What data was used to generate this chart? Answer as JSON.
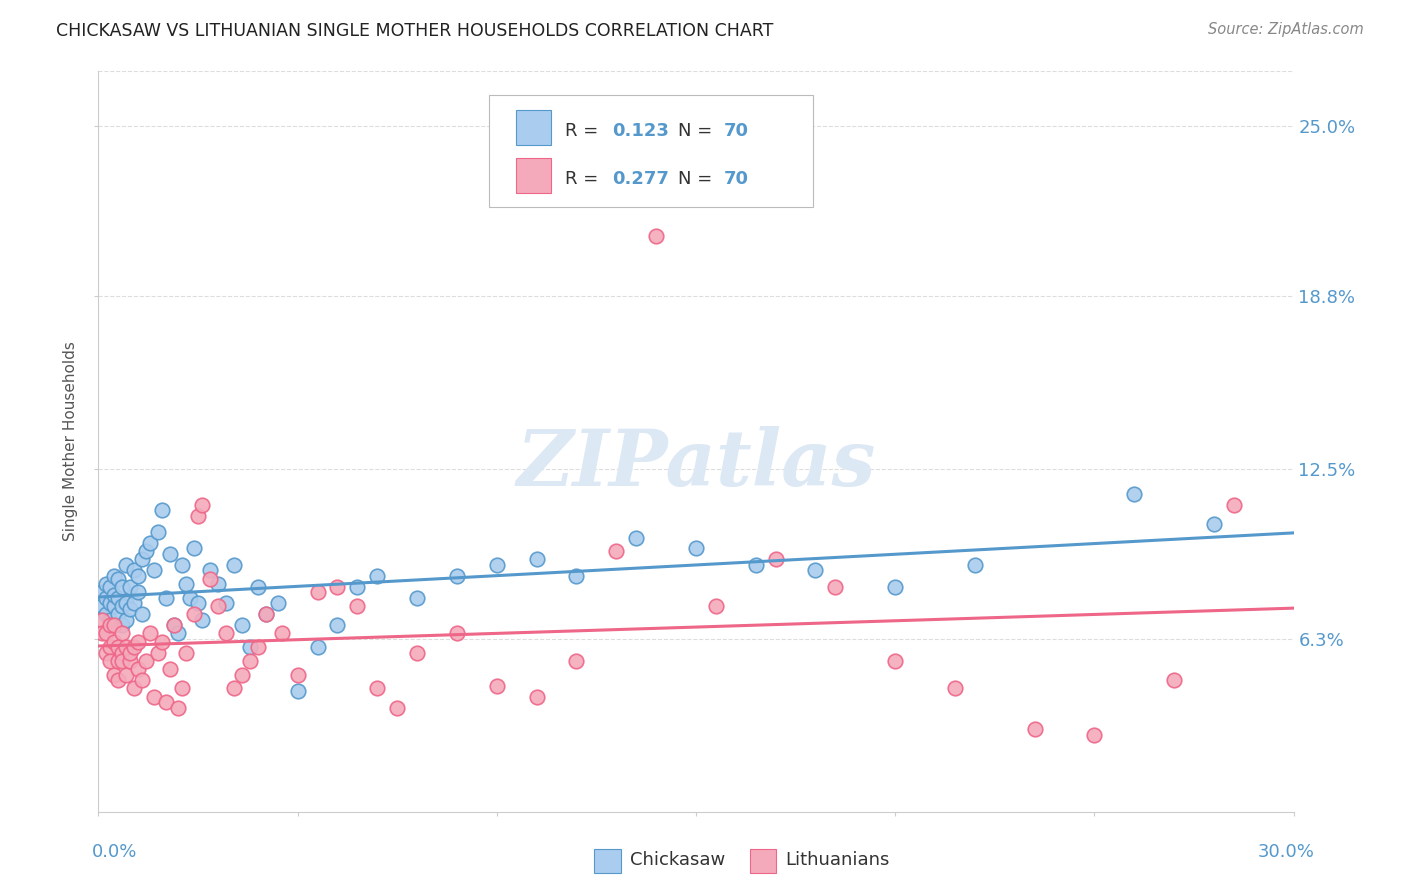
{
  "title": "CHICKASAW VS LITHUANIAN SINGLE MOTHER HOUSEHOLDS CORRELATION CHART",
  "source": "Source: ZipAtlas.com",
  "ylabel": "Single Mother Households",
  "ytick_labels": [
    "6.3%",
    "12.5%",
    "18.8%",
    "25.0%"
  ],
  "ytick_values": [
    0.063,
    0.125,
    0.188,
    0.25
  ],
  "xmin": 0.0,
  "xmax": 0.3,
  "ymin": 0.0,
  "ymax": 0.27,
  "chickasaw_color": "#aaccee",
  "lithuanian_color": "#f4aabb",
  "chickasaw_line_color": "#5599cc",
  "lithuanian_line_color": "#ee6688",
  "chickasaw_x": [
    0.001,
    0.001,
    0.002,
    0.002,
    0.002,
    0.003,
    0.003,
    0.003,
    0.004,
    0.004,
    0.004,
    0.005,
    0.005,
    0.005,
    0.006,
    0.006,
    0.006,
    0.007,
    0.007,
    0.007,
    0.008,
    0.008,
    0.009,
    0.009,
    0.01,
    0.01,
    0.011,
    0.011,
    0.012,
    0.013,
    0.014,
    0.015,
    0.016,
    0.017,
    0.018,
    0.019,
    0.02,
    0.021,
    0.022,
    0.023,
    0.024,
    0.025,
    0.026,
    0.028,
    0.03,
    0.032,
    0.034,
    0.036,
    0.038,
    0.04,
    0.042,
    0.045,
    0.05,
    0.055,
    0.06,
    0.065,
    0.07,
    0.08,
    0.09,
    0.1,
    0.11,
    0.12,
    0.135,
    0.15,
    0.165,
    0.18,
    0.2,
    0.22,
    0.26,
    0.28
  ],
  "chickasaw_y": [
    0.075,
    0.08,
    0.072,
    0.078,
    0.083,
    0.07,
    0.076,
    0.082,
    0.075,
    0.079,
    0.086,
    0.072,
    0.078,
    0.085,
    0.068,
    0.075,
    0.082,
    0.07,
    0.076,
    0.09,
    0.074,
    0.082,
    0.076,
    0.088,
    0.08,
    0.086,
    0.092,
    0.072,
    0.095,
    0.098,
    0.088,
    0.102,
    0.11,
    0.078,
    0.094,
    0.068,
    0.065,
    0.09,
    0.083,
    0.078,
    0.096,
    0.076,
    0.07,
    0.088,
    0.083,
    0.076,
    0.09,
    0.068,
    0.06,
    0.082,
    0.072,
    0.076,
    0.044,
    0.06,
    0.068,
    0.082,
    0.086,
    0.078,
    0.086,
    0.09,
    0.092,
    0.086,
    0.1,
    0.096,
    0.09,
    0.088,
    0.082,
    0.09,
    0.116,
    0.105
  ],
  "lithuanian_x": [
    0.001,
    0.001,
    0.002,
    0.002,
    0.003,
    0.003,
    0.003,
    0.004,
    0.004,
    0.004,
    0.005,
    0.005,
    0.005,
    0.006,
    0.006,
    0.006,
    0.007,
    0.007,
    0.008,
    0.008,
    0.009,
    0.009,
    0.01,
    0.01,
    0.011,
    0.012,
    0.013,
    0.014,
    0.015,
    0.016,
    0.017,
    0.018,
    0.019,
    0.02,
    0.021,
    0.022,
    0.024,
    0.025,
    0.026,
    0.028,
    0.03,
    0.032,
    0.034,
    0.036,
    0.038,
    0.04,
    0.042,
    0.046,
    0.05,
    0.055,
    0.06,
    0.065,
    0.07,
    0.075,
    0.08,
    0.09,
    0.1,
    0.11,
    0.12,
    0.13,
    0.14,
    0.155,
    0.17,
    0.185,
    0.2,
    0.215,
    0.235,
    0.25,
    0.27,
    0.285
  ],
  "lithuanian_y": [
    0.07,
    0.065,
    0.058,
    0.065,
    0.06,
    0.055,
    0.068,
    0.05,
    0.062,
    0.068,
    0.055,
    0.06,
    0.048,
    0.065,
    0.058,
    0.055,
    0.05,
    0.06,
    0.055,
    0.058,
    0.045,
    0.06,
    0.052,
    0.062,
    0.048,
    0.055,
    0.065,
    0.042,
    0.058,
    0.062,
    0.04,
    0.052,
    0.068,
    0.038,
    0.045,
    0.058,
    0.072,
    0.108,
    0.112,
    0.085,
    0.075,
    0.065,
    0.045,
    0.05,
    0.055,
    0.06,
    0.072,
    0.065,
    0.05,
    0.08,
    0.082,
    0.075,
    0.045,
    0.038,
    0.058,
    0.065,
    0.046,
    0.042,
    0.055,
    0.095,
    0.21,
    0.075,
    0.092,
    0.082,
    0.055,
    0.045,
    0.03,
    0.028,
    0.048,
    0.112
  ]
}
